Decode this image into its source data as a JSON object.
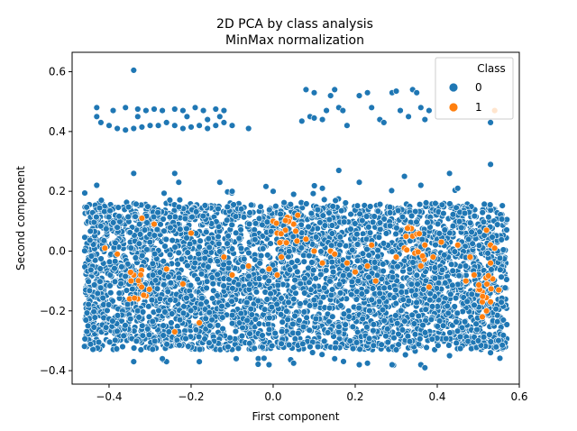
{
  "chart_data": {
    "type": "scatter",
    "title": "2D PCA by class analysis",
    "subtitle": "MinMax normalization",
    "xlabel": "First component",
    "ylabel": "Second component",
    "xlim": [
      -0.49,
      0.6
    ],
    "ylim": [
      -0.445,
      0.665
    ],
    "xticks": [
      -0.4,
      -0.2,
      0.0,
      0.2,
      0.4,
      0.6
    ],
    "xtick_labels": [
      "−0.4",
      "−0.2",
      "0.0",
      "0.2",
      "0.4",
      "0.6"
    ],
    "yticks": [
      -0.4,
      -0.2,
      0.0,
      0.2,
      0.4,
      0.6
    ],
    "ytick_labels": [
      "−0.4",
      "−0.2",
      "0.0",
      "0.2",
      "0.4",
      "0.6"
    ],
    "grid": false,
    "legend": {
      "title": "Class",
      "placement": "top-right",
      "entries": [
        {
          "label": "0",
          "color": "#1f77b4"
        },
        {
          "label": "1",
          "color": "#ff7f0e"
        }
      ]
    },
    "series": [
      {
        "name": "0",
        "color": "#1f77b4",
        "description_points": "dense band x∈[-0.46,0.57], y∈[-0.38,0.22] plus upper clusters near y≈0.41–0.55",
        "points": [
          [
            -0.34,
            0.605
          ],
          [
            -0.43,
            0.48
          ],
          [
            -0.39,
            0.47
          ],
          [
            -0.36,
            0.48
          ],
          [
            -0.33,
            0.475
          ],
          [
            -0.31,
            0.47
          ],
          [
            -0.29,
            0.475
          ],
          [
            -0.27,
            0.47
          ],
          [
            -0.24,
            0.475
          ],
          [
            -0.22,
            0.47
          ],
          [
            -0.19,
            0.48
          ],
          [
            -0.17,
            0.47
          ],
          [
            -0.14,
            0.475
          ],
          [
            -0.12,
            0.47
          ],
          [
            -0.43,
            0.45
          ],
          [
            -0.42,
            0.43
          ],
          [
            -0.4,
            0.42
          ],
          [
            -0.38,
            0.41
          ],
          [
            -0.36,
            0.405
          ],
          [
            -0.34,
            0.41
          ],
          [
            -0.32,
            0.415
          ],
          [
            -0.3,
            0.42
          ],
          [
            -0.28,
            0.42
          ],
          [
            -0.26,
            0.43
          ],
          [
            -0.24,
            0.42
          ],
          [
            -0.22,
            0.41
          ],
          [
            -0.2,
            0.415
          ],
          [
            -0.18,
            0.42
          ],
          [
            -0.16,
            0.41
          ],
          [
            -0.14,
            0.42
          ],
          [
            -0.12,
            0.43
          ],
          [
            -0.1,
            0.42
          ],
          [
            -0.06,
            0.41
          ],
          [
            -0.33,
            0.45
          ],
          [
            -0.21,
            0.45
          ],
          [
            -0.16,
            0.44
          ],
          [
            -0.13,
            0.45
          ],
          [
            0.07,
            0.435
          ],
          [
            0.09,
            0.45
          ],
          [
            0.08,
            0.54
          ],
          [
            0.1,
            0.53
          ],
          [
            0.14,
            0.52
          ],
          [
            0.13,
            0.47
          ],
          [
            0.15,
            0.54
          ],
          [
            0.16,
            0.48
          ],
          [
            0.17,
            0.47
          ],
          [
            0.18,
            0.42
          ],
          [
            0.21,
            0.52
          ],
          [
            0.23,
            0.53
          ],
          [
            0.24,
            0.48
          ],
          [
            0.26,
            0.44
          ],
          [
            0.27,
            0.43
          ],
          [
            0.29,
            0.53
          ],
          [
            0.3,
            0.535
          ],
          [
            0.31,
            0.47
          ],
          [
            0.33,
            0.45
          ],
          [
            0.34,
            0.54
          ],
          [
            0.35,
            0.53
          ],
          [
            0.36,
            0.48
          ],
          [
            0.37,
            0.44
          ],
          [
            0.38,
            0.47
          ],
          [
            0.53,
            0.43
          ],
          [
            0.53,
            0.29
          ],
          [
            0.1,
            0.445
          ],
          [
            0.12,
            0.44
          ],
          [
            -0.34,
            0.26
          ],
          [
            -0.24,
            0.26
          ],
          [
            -0.23,
            0.23
          ],
          [
            -0.43,
            0.22
          ],
          [
            -0.13,
            0.23
          ],
          [
            0.12,
            0.21
          ],
          [
            0.16,
            0.27
          ],
          [
            0.21,
            0.23
          ],
          [
            0.32,
            0.25
          ],
          [
            0.36,
            0.22
          ],
          [
            0.43,
            0.26
          ],
          [
            0.45,
            0.21
          ],
          [
            -0.1,
            0.2
          ],
          [
            0.0,
            0.2
          ],
          [
            0.05,
            0.19
          ],
          [
            -0.34,
            -0.37
          ],
          [
            -0.26,
            -0.37
          ],
          [
            -0.18,
            -0.37
          ],
          [
            -0.09,
            -0.36
          ],
          [
            -0.01,
            -0.38
          ],
          [
            0.05,
            -0.375
          ],
          [
            0.15,
            -0.36
          ],
          [
            0.21,
            -0.38
          ],
          [
            0.23,
            -0.375
          ],
          [
            0.29,
            -0.38
          ],
          [
            0.36,
            -0.38
          ],
          [
            0.37,
            -0.39
          ],
          [
            0.43,
            -0.35
          ],
          [
            0.5,
            -0.3
          ],
          [
            0.53,
            -0.34
          ],
          [
            -0.27,
            -0.36
          ],
          [
            -0.11,
            -0.32
          ],
          [
            0.02,
            -0.31
          ],
          [
            0.09,
            -0.32
          ],
          [
            0.3,
            -0.33
          ]
        ]
      },
      {
        "name": "1",
        "color": "#ff7f0e",
        "points": [
          [
            -0.32,
            0.11
          ],
          [
            -0.29,
            0.09
          ],
          [
            -0.26,
            -0.06
          ],
          [
            -0.34,
            -0.08
          ],
          [
            -0.31,
            -0.15
          ],
          [
            -0.35,
            -0.16
          ],
          [
            -0.33,
            -0.16
          ],
          [
            -0.38,
            -0.01
          ],
          [
            -0.41,
            0.01
          ],
          [
            -0.2,
            0.06
          ],
          [
            -0.22,
            -0.11
          ],
          [
            -0.24,
            -0.27
          ],
          [
            -0.18,
            -0.24
          ],
          [
            -0.12,
            -0.02
          ],
          [
            -0.1,
            -0.08
          ],
          [
            -0.06,
            -0.05
          ],
          [
            0.0,
            0.1
          ],
          [
            0.01,
            0.06
          ],
          [
            0.02,
            0.03
          ],
          [
            0.03,
            0.07
          ],
          [
            0.04,
            0.11
          ],
          [
            0.05,
            0.09
          ],
          [
            0.02,
            -0.02
          ],
          [
            -0.01,
            -0.06
          ],
          [
            0.01,
            -0.08
          ],
          [
            0.06,
            0.12
          ],
          [
            0.08,
            0.04
          ],
          [
            0.1,
            0.0
          ],
          [
            0.12,
            -0.04
          ],
          [
            0.14,
            0.0
          ],
          [
            0.15,
            -0.01
          ],
          [
            0.18,
            -0.04
          ],
          [
            0.2,
            -0.07
          ],
          [
            0.23,
            -0.05
          ],
          [
            0.24,
            0.02
          ],
          [
            0.25,
            -0.1
          ],
          [
            0.3,
            -0.02
          ],
          [
            0.32,
            0.01
          ],
          [
            0.33,
            0.08
          ],
          [
            0.34,
            0.05
          ],
          [
            0.35,
            0.0
          ],
          [
            0.36,
            -0.05
          ],
          [
            0.37,
            0.02
          ],
          [
            0.38,
            -0.12
          ],
          [
            0.39,
            -0.02
          ],
          [
            0.41,
            0.03
          ],
          [
            0.45,
            0.02
          ],
          [
            0.48,
            -0.02
          ],
          [
            0.49,
            -0.08
          ],
          [
            0.5,
            -0.13
          ],
          [
            0.51,
            -0.17
          ],
          [
            0.52,
            0.07
          ],
          [
            0.53,
            -0.04
          ],
          [
            0.53,
            0.02
          ],
          [
            0.54,
            0.01
          ],
          [
            0.55,
            -0.13
          ],
          [
            0.54,
            0.47
          ],
          [
            0.51,
            -0.22
          ],
          [
            0.53,
            -0.17
          ],
          [
            0.47,
            -0.1
          ],
          [
            0.52,
            -0.2
          ]
        ]
      }
    ]
  }
}
